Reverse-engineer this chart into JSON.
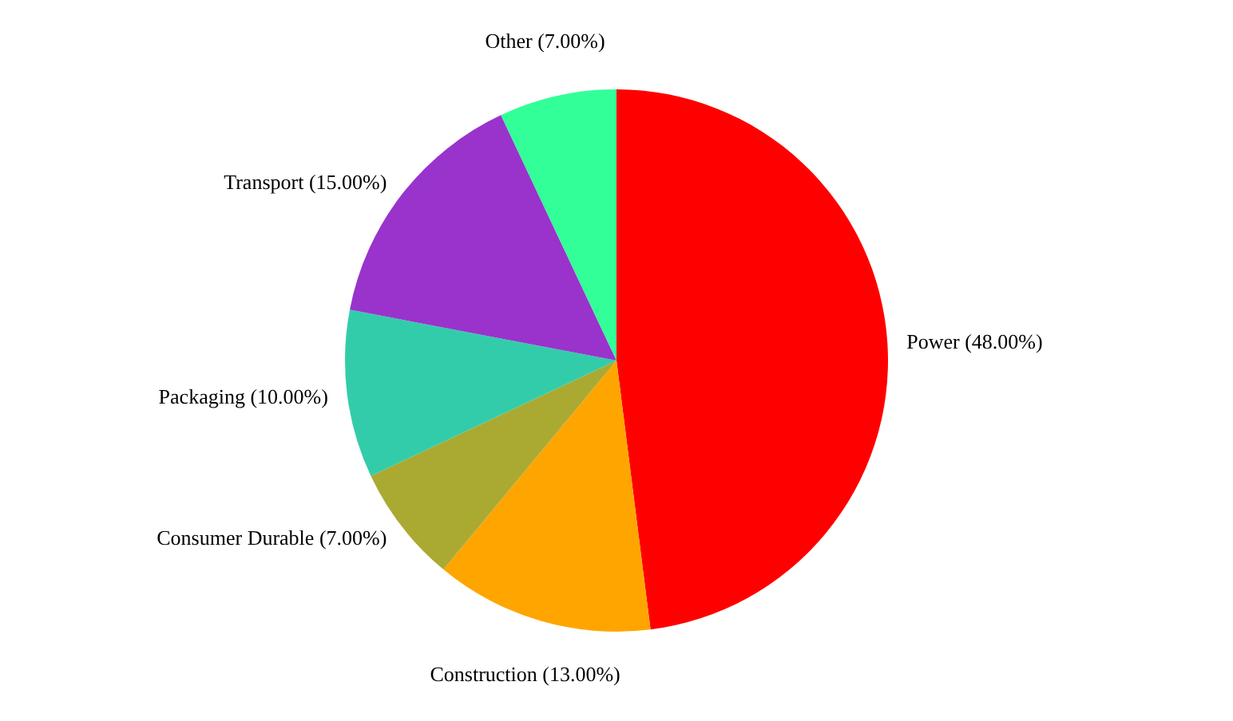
{
  "chart_data": {
    "type": "pie",
    "categories": [
      "Power",
      "Construction",
      "Consumer Durable",
      "Packaging",
      "Transport",
      "Other"
    ],
    "values": [
      48,
      13,
      7,
      10,
      15,
      7
    ],
    "colors": [
      "#ff0000",
      "#ffa500",
      "#aaaa33",
      "#33ccaa",
      "#9933cc",
      "#33ff99"
    ],
    "value_labels": [
      "(48.00%)",
      "(13.00%)",
      "(7.00%)",
      "(10.00%)",
      "(15.00%)",
      "(7.00%)"
    ],
    "legend": false
  }
}
